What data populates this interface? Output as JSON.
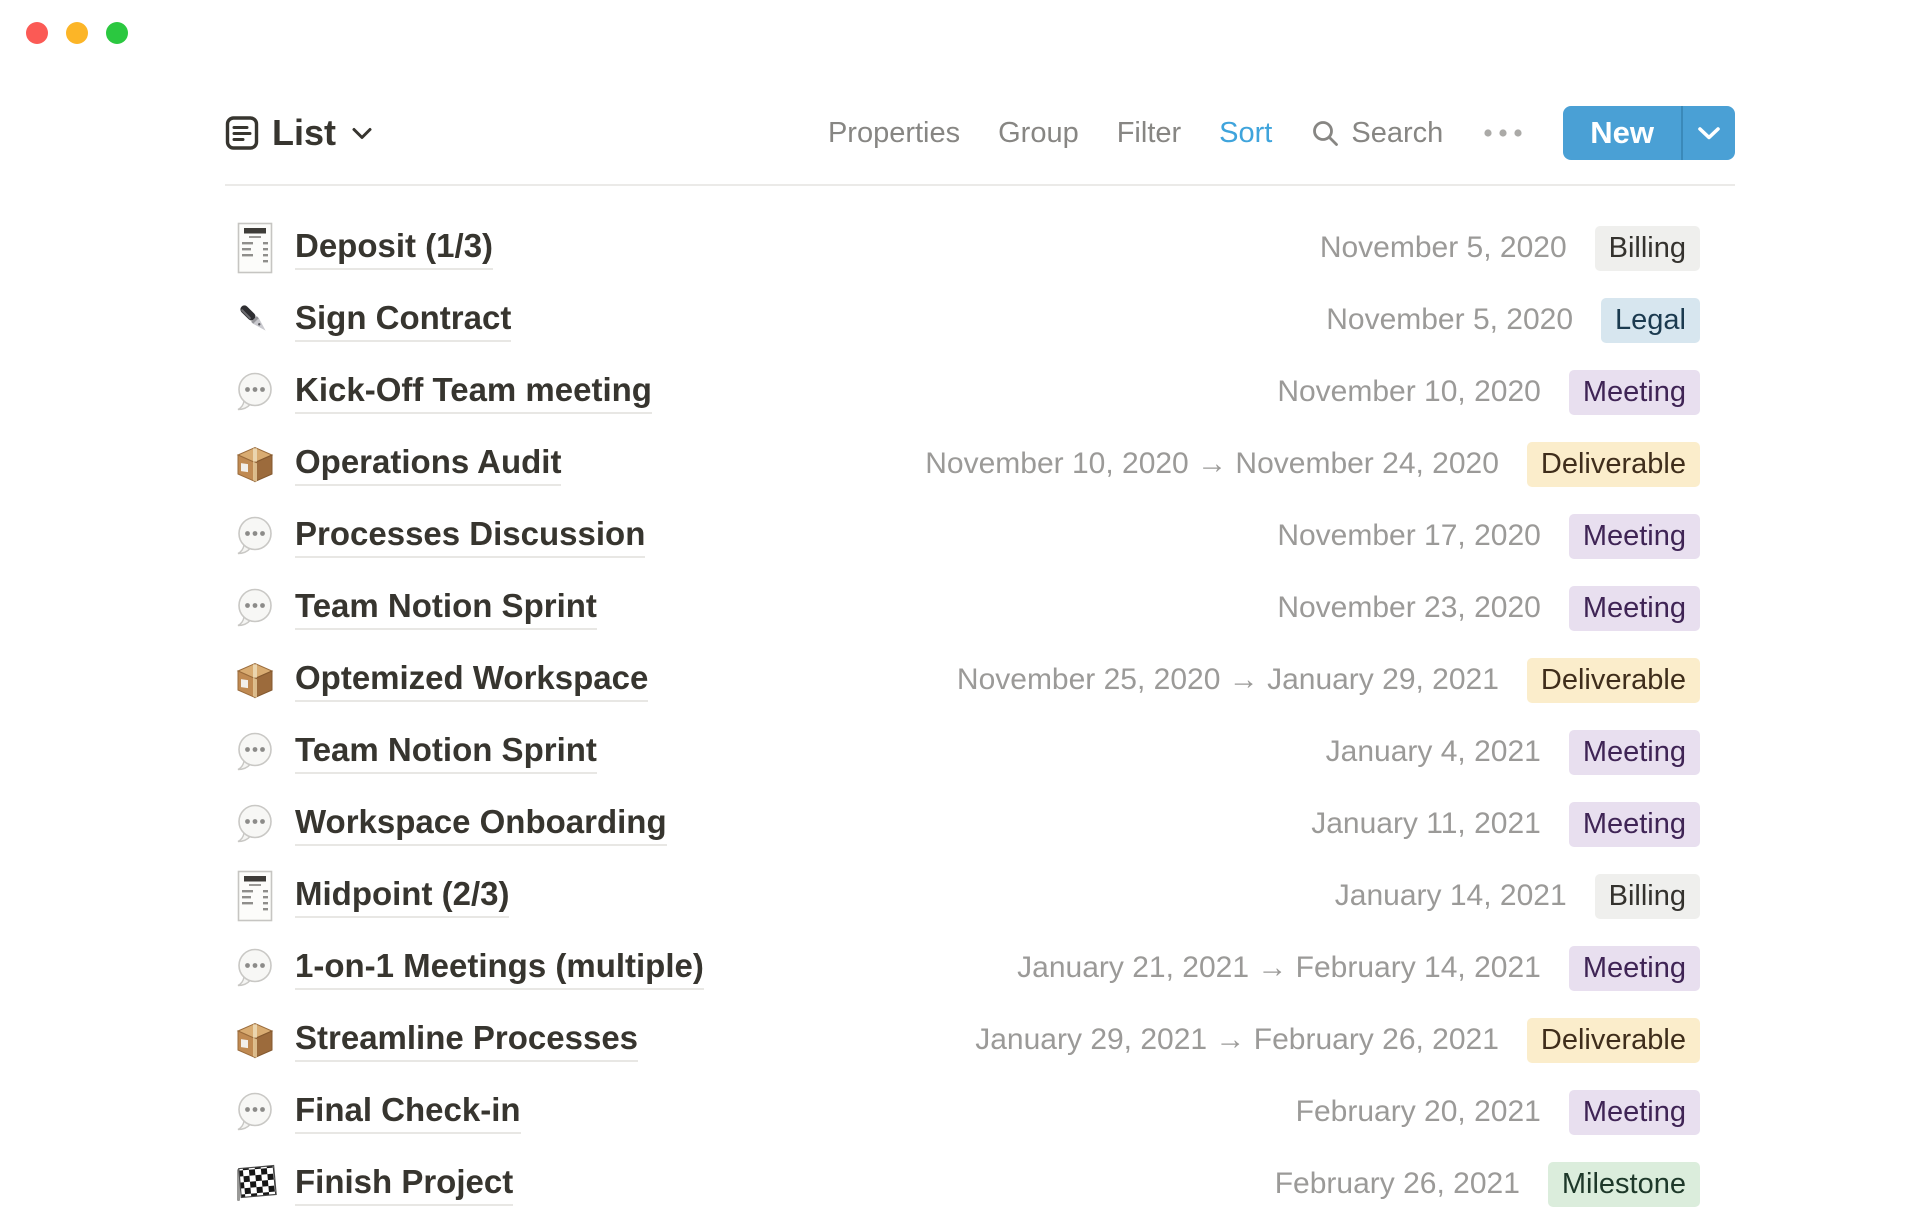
{
  "window": {
    "controls": [
      "close",
      "minimize",
      "zoom"
    ]
  },
  "colors": {
    "accent_blue": "#3FA4DC",
    "new_button_blue": "#4AA0D5",
    "traffic_red": "#FB5A55",
    "traffic_yellow": "#FCB527",
    "traffic_green": "#2BC840",
    "tags": {
      "gray": {
        "bg": "#EFEFED",
        "text": "#34322E"
      },
      "blue": {
        "bg": "#D7E6EF",
        "text": "#1B3A4F"
      },
      "purple": {
        "bg": "#E8DFEF",
        "text": "#3F2455"
      },
      "yellow": {
        "bg": "#FBEDCB",
        "text": "#3F2D1B"
      },
      "green": {
        "bg": "#DBEDDC",
        "text": "#1D3829"
      }
    }
  },
  "header": {
    "title": "List",
    "view_icon": "list-view-icon",
    "caret_icon": "chevron-down-icon"
  },
  "toolbar": {
    "items": [
      {
        "label": "Properties",
        "active": false
      },
      {
        "label": "Group",
        "active": false
      },
      {
        "label": "Filter",
        "active": false
      },
      {
        "label": "Sort",
        "active": true
      }
    ],
    "search": {
      "label": "Search",
      "icon": "search-icon"
    },
    "more_icon": "ellipsis-icon",
    "new_button": {
      "label": "New",
      "caret_icon": "chevron-down-white-icon"
    }
  },
  "list": {
    "rows": [
      {
        "icon": "receipt-icon",
        "title": "Deposit (1/3)",
        "date": "November 5, 2020",
        "tag": "Billing",
        "tag_color": "gray"
      },
      {
        "icon": "pen-icon",
        "title": "Sign Contract",
        "date": "November 5, 2020",
        "tag": "Legal",
        "tag_color": "blue"
      },
      {
        "icon": "speech-icon",
        "title": "Kick-Off Team meeting",
        "date": "November 10, 2020",
        "tag": "Meeting",
        "tag_color": "purple"
      },
      {
        "icon": "package-icon",
        "title": "Operations Audit",
        "date": "November 10, 2020 → November 24, 2020",
        "tag": "Deliverable",
        "tag_color": "yellow"
      },
      {
        "icon": "speech-icon",
        "title": "Processes Discussion",
        "date": "November 17, 2020",
        "tag": "Meeting",
        "tag_color": "purple"
      },
      {
        "icon": "speech-icon",
        "title": "Team Notion Sprint",
        "date": "November 23, 2020",
        "tag": "Meeting",
        "tag_color": "purple"
      },
      {
        "icon": "package-icon",
        "title": "Optemized Workspace",
        "date": "November 25, 2020 → January 29, 2021",
        "tag": "Deliverable",
        "tag_color": "yellow"
      },
      {
        "icon": "speech-icon",
        "title": "Team Notion Sprint",
        "date": "January 4, 2021",
        "tag": "Meeting",
        "tag_color": "purple"
      },
      {
        "icon": "speech-icon",
        "title": "Workspace Onboarding",
        "date": "January 11, 2021",
        "tag": "Meeting",
        "tag_color": "purple"
      },
      {
        "icon": "receipt-icon",
        "title": "Midpoint (2/3)",
        "date": "January 14, 2021",
        "tag": "Billing",
        "tag_color": "gray"
      },
      {
        "icon": "speech-icon",
        "title": "1-on-1 Meetings (multiple)",
        "date": "January 21, 2021 → February 14, 2021",
        "tag": "Meeting",
        "tag_color": "purple"
      },
      {
        "icon": "package-icon",
        "title": "Streamline Processes",
        "date": "January 29, 2021 → February 26, 2021",
        "tag": "Deliverable",
        "tag_color": "yellow"
      },
      {
        "icon": "speech-icon",
        "title": "Final Check-in",
        "date": "February 20, 2021",
        "tag": "Meeting",
        "tag_color": "purple"
      },
      {
        "icon": "flag-icon",
        "title": "Finish Project",
        "date": "February 26, 2021",
        "tag": "Milestone",
        "tag_color": "green"
      }
    ]
  }
}
